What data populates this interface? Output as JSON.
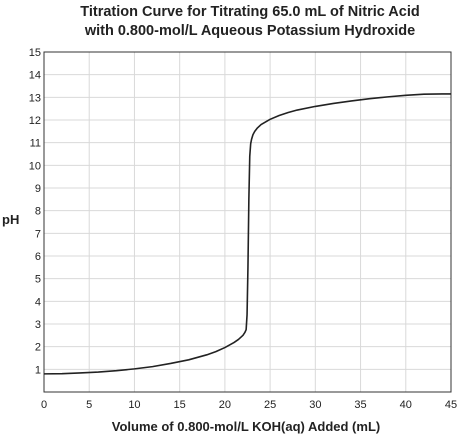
{
  "chart_data": {
    "type": "line",
    "title": [
      "Titration Curve for Titrating 65.0 mL of  Nitric Acid",
      "with 0.800-mol/L Aqueous Potassium Hydroxide"
    ],
    "xlabel": "Volume of 0.800-mol/L KOH(aq) Added (mL)",
    "ylabel": "pH",
    "xlim": [
      0,
      45
    ],
    "ylim": [
      0,
      15
    ],
    "xticks": [
      0,
      5,
      10,
      15,
      20,
      25,
      30,
      35,
      40,
      45
    ],
    "yticks": [
      1,
      2,
      3,
      4,
      5,
      6,
      7,
      8,
      9,
      10,
      11,
      12,
      13,
      14,
      15
    ],
    "grid": true,
    "series": [
      {
        "x": [
          0,
          2,
          4,
          6,
          8,
          10,
          12,
          14,
          16,
          18,
          19,
          20,
          21,
          21.5,
          22,
          22.2,
          22.35,
          22.45,
          22.55,
          22.65,
          22.75,
          22.85,
          22.95,
          23.1,
          23.3,
          23.6,
          24,
          25,
          26,
          27,
          28,
          30,
          32,
          34,
          36,
          38,
          40,
          42,
          44,
          45
        ],
        "y": [
          0.8,
          0.81,
          0.84,
          0.88,
          0.94,
          1.02,
          1.12,
          1.26,
          1.42,
          1.64,
          1.78,
          1.96,
          2.18,
          2.32,
          2.5,
          2.62,
          2.75,
          3.4,
          5.5,
          8.5,
          10.4,
          10.95,
          11.15,
          11.35,
          11.5,
          11.65,
          11.8,
          12.03,
          12.2,
          12.33,
          12.44,
          12.6,
          12.73,
          12.84,
          12.94,
          13.02,
          13.09,
          13.14,
          13.15,
          13.15
        ]
      }
    ]
  }
}
